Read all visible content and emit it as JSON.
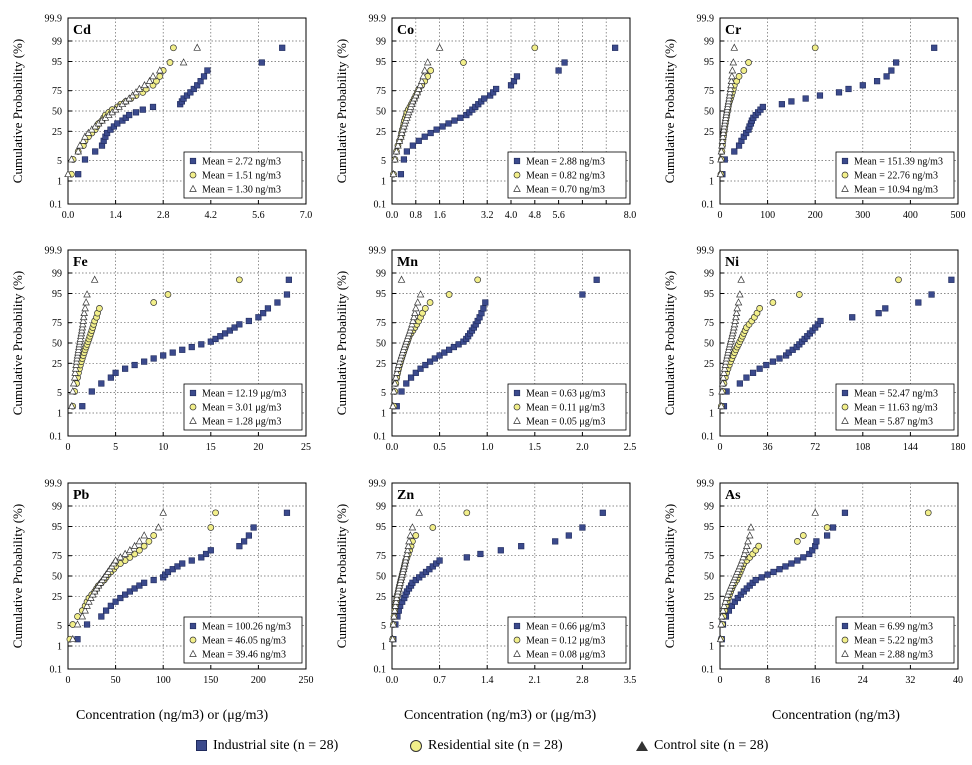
{
  "figure": {
    "ylabel": "Cumulative Probability (%)",
    "y_ticks": [
      "99.9",
      "99",
      "95",
      "75",
      "50",
      "25",
      "5",
      "1",
      "0.1"
    ],
    "xlabels": [
      "Concentration (ng/m3) or (μg/m3)",
      "Concentration (ng/m3) or (μg/m3)",
      "Concentration (ng/m3)"
    ],
    "legend": {
      "industrial": "Industrial site (n = 28)",
      "residential": "Residential site (n = 28)",
      "control": "Control site (n = 28)"
    },
    "colors": {
      "industrial": "#3b4a8c",
      "residential": "#f2ef8a",
      "control": "#ffffff"
    }
  },
  "chart_data": [
    {
      "type": "scatter",
      "title": "Cd",
      "xlim": [
        0,
        7
      ],
      "xticks": [
        "0.0",
        "1.4",
        "2.8",
        "4.2",
        "5.6",
        "7.0"
      ],
      "legend_text": [
        "Mean = 2.72 ng/m3",
        "Mean = 1.51 ng/m3",
        "Mean = 1.30 ng/m3"
      ],
      "series": [
        {
          "name": "Industrial",
          "x": [
            0.3,
            0.5,
            0.8,
            1.0,
            1.05,
            1.1,
            1.15,
            1.25,
            1.35,
            1.45,
            1.6,
            1.7,
            1.8,
            2.0,
            2.2,
            2.5,
            3.3,
            3.35,
            3.4,
            3.5,
            3.6,
            3.7,
            3.8,
            3.9,
            4.0,
            4.1,
            5.7,
            6.3
          ]
        },
        {
          "name": "Residential",
          "x": [
            0.1,
            0.15,
            0.3,
            0.45,
            0.5,
            0.6,
            0.7,
            0.8,
            0.85,
            0.9,
            1.0,
            1.05,
            1.1,
            1.2,
            1.3,
            1.45,
            1.55,
            1.7,
            1.85,
            2.0,
            2.2,
            2.3,
            2.5,
            2.6,
            2.7,
            2.8,
            3.0,
            3.1
          ]
        },
        {
          "name": "Control",
          "x": [
            0.0,
            0.1,
            0.3,
            0.35,
            0.45,
            0.5,
            0.6,
            0.7,
            0.8,
            0.9,
            1.0,
            1.1,
            1.2,
            1.3,
            1.4,
            1.5,
            1.6,
            1.7,
            1.8,
            1.9,
            2.0,
            2.1,
            2.25,
            2.4,
            2.5,
            2.7,
            3.4,
            3.8
          ]
        }
      ]
    },
    {
      "type": "scatter",
      "title": "Co",
      "xlim": [
        0,
        8
      ],
      "xticks": [
        "0.0",
        "0.8",
        "1.6",
        "2.4",
        "3.2",
        "4.0",
        "4.8",
        "5.6",
        "6.4",
        "7.2",
        "8.0"
      ],
      "xtick_labels_shown": [
        "0.0",
        "0.8",
        "1.6",
        "3.2",
        "4.0",
        "4.8",
        "5.6",
        "8.0"
      ],
      "legend_text": [
        "Mean = 2.88 ng/m3",
        "Mean = 0.82 ng/m3",
        "Mean = 0.70 ng/m3"
      ],
      "series": [
        {
          "name": "Industrial",
          "x": [
            0.3,
            0.4,
            0.5,
            0.7,
            0.9,
            1.1,
            1.3,
            1.5,
            1.7,
            1.9,
            2.1,
            2.3,
            2.5,
            2.6,
            2.7,
            2.8,
            2.9,
            3.0,
            3.1,
            3.3,
            3.4,
            3.5,
            4.0,
            4.1,
            4.2,
            5.6,
            5.8,
            7.5
          ]
        },
        {
          "name": "Residential",
          "x": [
            0.05,
            0.1,
            0.15,
            0.2,
            0.25,
            0.3,
            0.32,
            0.35,
            0.38,
            0.4,
            0.42,
            0.45,
            0.48,
            0.5,
            0.55,
            0.6,
            0.65,
            0.7,
            0.75,
            0.8,
            0.85,
            0.9,
            1.0,
            1.1,
            1.2,
            1.3,
            2.4,
            4.8
          ]
        },
        {
          "name": "Control",
          "x": [
            0.05,
            0.1,
            0.15,
            0.2,
            0.25,
            0.3,
            0.33,
            0.36,
            0.4,
            0.43,
            0.46,
            0.5,
            0.53,
            0.56,
            0.6,
            0.63,
            0.66,
            0.7,
            0.75,
            0.8,
            0.85,
            0.9,
            0.95,
            1.0,
            1.05,
            1.1,
            1.2,
            1.6
          ]
        }
      ]
    },
    {
      "type": "scatter",
      "title": "Cr",
      "xlim": [
        0,
        500
      ],
      "xticks": [
        "0",
        "100",
        "200",
        "300",
        "400",
        "500"
      ],
      "legend_text": [
        "Mean = 151.39 ng/m3",
        "Mean =  22.76 ng/m3",
        "Mean =  10.94 ng/m3"
      ],
      "series": [
        {
          "name": "Industrial",
          "x": [
            5,
            10,
            30,
            40,
            45,
            50,
            55,
            60,
            62,
            65,
            67,
            70,
            75,
            80,
            85,
            90,
            130,
            150,
            180,
            210,
            250,
            270,
            300,
            330,
            350,
            360,
            370,
            450
          ]
        },
        {
          "name": "Residential",
          "x": [
            2,
            3,
            4,
            5,
            6,
            7,
            8,
            9,
            10,
            11,
            12,
            13,
            14,
            15,
            16,
            17,
            18,
            20,
            22,
            24,
            26,
            28,
            30,
            35,
            40,
            50,
            60,
            200
          ]
        },
        {
          "name": "Control",
          "x": [
            1,
            2,
            3,
            4,
            5,
            6,
            7,
            8,
            9,
            10,
            11,
            12,
            13,
            14,
            15,
            16,
            17,
            18,
            19,
            20,
            21,
            22,
            23,
            24,
            25,
            26,
            28,
            30
          ]
        }
      ]
    },
    {
      "type": "scatter",
      "title": "Fe",
      "xlim": [
        0,
        25
      ],
      "xticks": [
        "0",
        "5",
        "10",
        "15",
        "20",
        "25"
      ],
      "legend_text": [
        "Mean = 12.19 μg/m3",
        "Mean =  3.01 μg/m3",
        "Mean =  1.28 μg/m3"
      ],
      "series": [
        {
          "name": "Industrial",
          "x": [
            1.5,
            2.5,
            3.5,
            4.5,
            5.0,
            6.0,
            7.0,
            8.0,
            9.0,
            10.0,
            11.0,
            12.0,
            13.0,
            14.0,
            15.0,
            15.5,
            16.0,
            16.5,
            17.0,
            17.5,
            18.0,
            19.0,
            20.0,
            20.5,
            21.0,
            22.0,
            23.0,
            23.2
          ]
        },
        {
          "name": "Residential",
          "x": [
            0.5,
            0.7,
            0.9,
            1.0,
            1.1,
            1.2,
            1.3,
            1.4,
            1.5,
            1.6,
            1.7,
            1.8,
            1.9,
            2.0,
            2.1,
            2.2,
            2.3,
            2.4,
            2.5,
            2.6,
            2.7,
            2.8,
            3.0,
            3.1,
            3.3,
            9.0,
            10.5,
            18.0
          ]
        },
        {
          "name": "Control",
          "x": [
            0.4,
            0.5,
            0.6,
            0.7,
            0.75,
            0.8,
            0.85,
            0.9,
            0.95,
            1.0,
            1.05,
            1.1,
            1.15,
            1.2,
            1.25,
            1.3,
            1.35,
            1.4,
            1.45,
            1.5,
            1.55,
            1.6,
            1.65,
            1.7,
            1.8,
            1.9,
            2.0,
            2.8
          ]
        }
      ]
    },
    {
      "type": "scatter",
      "title": "Mn",
      "xlim": [
        0,
        2.5
      ],
      "xticks": [
        "0.0",
        "0.5",
        "1.0",
        "1.5",
        "2.0",
        "2.5"
      ],
      "legend_text": [
        "Mean = 0.63 μg/m3",
        "Mean = 0.11 μg/m3",
        "Mean = 0.05 μg/m3"
      ],
      "series": [
        {
          "name": "Industrial",
          "x": [
            0.05,
            0.1,
            0.15,
            0.2,
            0.25,
            0.3,
            0.35,
            0.4,
            0.45,
            0.5,
            0.55,
            0.6,
            0.65,
            0.7,
            0.75,
            0.78,
            0.8,
            0.82,
            0.84,
            0.86,
            0.88,
            0.9,
            0.92,
            0.94,
            0.96,
            0.98,
            2.0,
            2.15
          ]
        },
        {
          "name": "Residential",
          "x": [
            0.02,
            0.03,
            0.04,
            0.05,
            0.06,
            0.07,
            0.08,
            0.09,
            0.1,
            0.11,
            0.12,
            0.13,
            0.14,
            0.15,
            0.16,
            0.17,
            0.18,
            0.2,
            0.22,
            0.24,
            0.26,
            0.28,
            0.3,
            0.32,
            0.35,
            0.4,
            0.6,
            0.9
          ]
        },
        {
          "name": "Control",
          "x": [
            0.01,
            0.02,
            0.03,
            0.04,
            0.05,
            0.06,
            0.07,
            0.08,
            0.09,
            0.1,
            0.11,
            0.12,
            0.13,
            0.14,
            0.15,
            0.16,
            0.17,
            0.18,
            0.19,
            0.2,
            0.21,
            0.22,
            0.23,
            0.24,
            0.25,
            0.27,
            0.3,
            0.1
          ]
        }
      ]
    },
    {
      "type": "scatter",
      "title": "Ni",
      "xlim": [
        0,
        180
      ],
      "xticks": [
        "0",
        "36",
        "72",
        "108",
        "144",
        "180"
      ],
      "legend_text": [
        "Mean = 52.47 ng/m3",
        "Mean = 11.63 ng/m3",
        "Mean =  5.87 ng/m3"
      ],
      "series": [
        {
          "name": "Industrial",
          "x": [
            3,
            5,
            15,
            20,
            25,
            30,
            35,
            40,
            45,
            50,
            52,
            55,
            58,
            60,
            62,
            64,
            66,
            68,
            70,
            72,
            74,
            76,
            100,
            120,
            125,
            150,
            160,
            175
          ]
        },
        {
          "name": "Residential",
          "x": [
            1,
            2,
            3,
            4,
            5,
            6,
            7,
            8,
            9,
            10,
            11,
            12,
            13,
            14,
            15,
            16,
            17,
            18,
            19,
            20,
            22,
            24,
            26,
            28,
            30,
            40,
            60,
            135
          ]
        },
        {
          "name": "Control",
          "x": [
            1,
            1.5,
            2,
            2.5,
            3,
            3.5,
            4,
            4.5,
            5,
            5.5,
            6,
            6.5,
            7,
            7.5,
            8,
            8.5,
            9,
            9.5,
            10,
            10.5,
            11,
            11.5,
            12,
            12.5,
            13,
            14,
            15,
            16
          ]
        }
      ]
    },
    {
      "type": "scatter",
      "title": "Pb",
      "xlim": [
        0,
        250
      ],
      "xticks": [
        "0",
        "50",
        "100",
        "150",
        "200",
        "250"
      ],
      "legend_text": [
        "Mean = 100.26 ng/m3",
        "Mean =  46.05 ng/m3",
        "Mean =  39.46 ng/m3"
      ],
      "series": [
        {
          "name": "Industrial",
          "x": [
            10,
            20,
            35,
            40,
            45,
            50,
            55,
            60,
            65,
            70,
            75,
            80,
            90,
            100,
            102,
            105,
            110,
            115,
            120,
            130,
            140,
            145,
            150,
            180,
            185,
            190,
            195,
            230
          ]
        },
        {
          "name": "Residential",
          "x": [
            2,
            5,
            10,
            15,
            18,
            20,
            22,
            25,
            28,
            30,
            32,
            35,
            38,
            40,
            42,
            45,
            48,
            50,
            55,
            60,
            65,
            70,
            75,
            80,
            85,
            90,
            150,
            155
          ]
        },
        {
          "name": "Control",
          "x": [
            5,
            10,
            15,
            18,
            20,
            22,
            24,
            26,
            28,
            30,
            32,
            34,
            36,
            38,
            40,
            42,
            44,
            46,
            48,
            50,
            55,
            60,
            65,
            70,
            75,
            80,
            95,
            100
          ]
        }
      ]
    },
    {
      "type": "scatter",
      "title": "Zn",
      "xlim": [
        0,
        3.5
      ],
      "xticks": [
        "0.0",
        "0.7",
        "1.4",
        "2.1",
        "2.8",
        "3.5"
      ],
      "legend_text": [
        "Mean = 0.66 μg/m3",
        "Mean = 0.12 μg/m3",
        "Mean = 0.08 μg/m3"
      ],
      "series": [
        {
          "name": "Industrial",
          "x": [
            0.02,
            0.05,
            0.08,
            0.1,
            0.12,
            0.15,
            0.18,
            0.2,
            0.22,
            0.25,
            0.28,
            0.3,
            0.35,
            0.4,
            0.45,
            0.5,
            0.55,
            0.6,
            0.65,
            0.7,
            1.1,
            1.3,
            1.6,
            1.9,
            2.4,
            2.6,
            2.8,
            3.1
          ]
        },
        {
          "name": "Residential",
          "x": [
            0.01,
            0.02,
            0.03,
            0.04,
            0.05,
            0.06,
            0.07,
            0.08,
            0.09,
            0.1,
            0.11,
            0.12,
            0.13,
            0.14,
            0.15,
            0.16,
            0.17,
            0.18,
            0.19,
            0.2,
            0.22,
            0.24,
            0.26,
            0.28,
            0.3,
            0.35,
            0.6,
            1.1
          ]
        },
        {
          "name": "Control",
          "x": [
            0.01,
            0.02,
            0.03,
            0.04,
            0.05,
            0.06,
            0.07,
            0.08,
            0.09,
            0.1,
            0.11,
            0.12,
            0.13,
            0.14,
            0.15,
            0.16,
            0.17,
            0.18,
            0.19,
            0.2,
            0.21,
            0.22,
            0.23,
            0.24,
            0.25,
            0.27,
            0.3,
            0.4
          ]
        }
      ]
    },
    {
      "type": "scatter",
      "title": "As",
      "xlim": [
        0,
        40
      ],
      "xticks": [
        "0",
        "8",
        "16",
        "24",
        "32",
        "40"
      ],
      "legend_text": [
        "Mean = 6.99 ng/m3",
        "Mean = 5.22 ng/m3",
        "Mean = 2.88 ng/m3"
      ],
      "series": [
        {
          "name": "Industrial",
          "x": [
            0.3,
            0.5,
            1.0,
            1.5,
            2.0,
            2.5,
            3.0,
            3.5,
            4.0,
            4.5,
            5.0,
            5.5,
            6.0,
            7.0,
            8.0,
            9.0,
            10.0,
            11.0,
            12.0,
            13.0,
            14.0,
            15.0,
            15.5,
            16.0,
            16.2,
            18.0,
            19.0,
            21.0
          ]
        },
        {
          "name": "Residential",
          "x": [
            0.2,
            0.4,
            0.6,
            0.8,
            1.0,
            1.2,
            1.4,
            1.6,
            1.8,
            2.0,
            2.2,
            2.5,
            2.8,
            3.0,
            3.2,
            3.4,
            3.6,
            3.8,
            4.0,
            4.5,
            5.0,
            5.5,
            6.0,
            6.5,
            13.0,
            14.0,
            18.0,
            35.0
          ]
        },
        {
          "name": "Control",
          "x": [
            0.1,
            0.2,
            0.3,
            0.5,
            0.7,
            0.9,
            1.1,
            1.3,
            1.5,
            1.7,
            1.9,
            2.1,
            2.3,
            2.5,
            2.7,
            2.9,
            3.1,
            3.3,
            3.5,
            3.7,
            3.9,
            4.1,
            4.3,
            4.5,
            4.7,
            5.0,
            5.2,
            16.0
          ]
        }
      ]
    }
  ]
}
